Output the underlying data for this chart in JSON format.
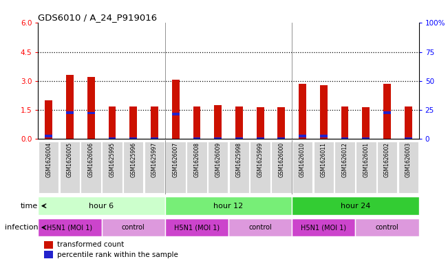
{
  "title": "GDS6010 / A_24_P919016",
  "samples": [
    "GSM1626004",
    "GSM1626005",
    "GSM1626006",
    "GSM1625995",
    "GSM1625996",
    "GSM1625997",
    "GSM1626007",
    "GSM1626008",
    "GSM1626009",
    "GSM1625998",
    "GSM1625999",
    "GSM1626000",
    "GSM1626010",
    "GSM1626011",
    "GSM1626012",
    "GSM1626001",
    "GSM1626002",
    "GSM1626003"
  ],
  "red_values": [
    2.0,
    3.3,
    3.2,
    1.7,
    1.7,
    1.7,
    3.05,
    1.7,
    1.75,
    1.7,
    1.65,
    1.65,
    2.85,
    2.8,
    1.7,
    1.65,
    2.85,
    1.7
  ],
  "blue_heights": [
    0.12,
    0.15,
    0.13,
    0.06,
    0.06,
    0.06,
    0.16,
    0.06,
    0.06,
    0.06,
    0.06,
    0.06,
    0.14,
    0.14,
    0.07,
    0.06,
    0.15,
    0.07
  ],
  "blue_bottoms": [
    0.1,
    1.28,
    1.28,
    0.02,
    0.02,
    0.02,
    1.22,
    0.02,
    0.02,
    0.02,
    0.02,
    0.02,
    0.1,
    0.1,
    0.02,
    0.02,
    1.28,
    0.02
  ],
  "ylim_left": [
    0,
    6
  ],
  "ylim_right": [
    0,
    100
  ],
  "yticks_left": [
    0,
    1.5,
    3.0,
    4.5,
    6
  ],
  "yticks_right_vals": [
    0,
    25,
    50,
    75,
    100
  ],
  "yticks_right_labels": [
    "0",
    "25",
    "50",
    "75",
    "100%"
  ],
  "hlines": [
    1.5,
    3.0,
    4.5
  ],
  "bar_color": "#cc1100",
  "blue_color": "#2222cc",
  "bar_width": 0.35,
  "time_colors": [
    "#ccffcc",
    "#77ee77",
    "#33cc33"
  ],
  "time_labels": [
    "hour 6",
    "hour 12",
    "hour 24"
  ],
  "time_starts": [
    0,
    6,
    12
  ],
  "time_ends": [
    6,
    12,
    18
  ],
  "inf_h5n1_color": "#cc44cc",
  "inf_ctrl_color": "#dd99dd",
  "inf_groups": [
    {
      "label": "H5N1 (MOI 1)",
      "start": 0,
      "end": 3,
      "h5n1": true
    },
    {
      "label": "control",
      "start": 3,
      "end": 6,
      "h5n1": false
    },
    {
      "label": "H5N1 (MOI 1)",
      "start": 6,
      "end": 9,
      "h5n1": true
    },
    {
      "label": "control",
      "start": 9,
      "end": 12,
      "h5n1": false
    },
    {
      "label": "H5N1 (MOI 1)",
      "start": 12,
      "end": 15,
      "h5n1": true
    },
    {
      "label": "control",
      "start": 15,
      "end": 18,
      "h5n1": false
    }
  ],
  "legend_red": "transformed count",
  "legend_blue": "percentile rank within the sample",
  "xtick_bg": "#d8d8d8",
  "plot_bg": "#ffffff",
  "n_samples": 18
}
